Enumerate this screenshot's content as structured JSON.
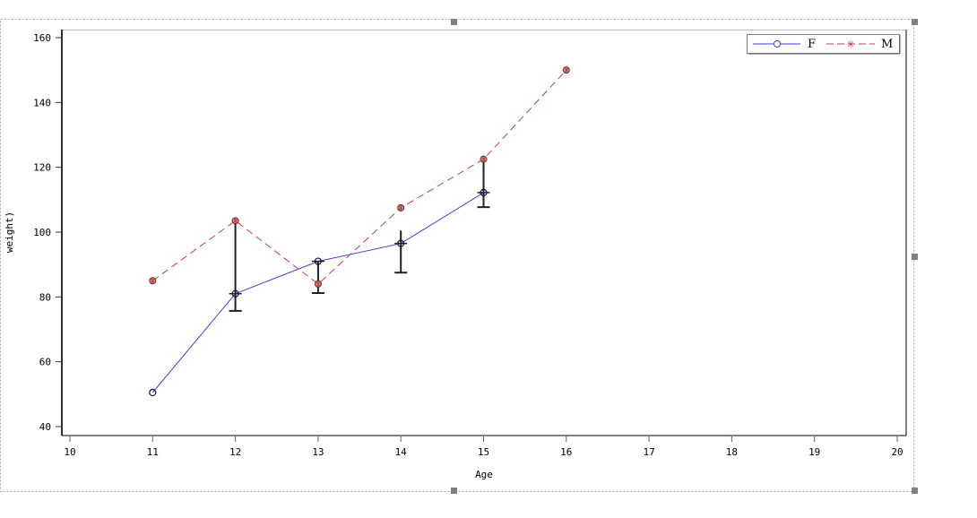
{
  "chart_data": {
    "type": "line",
    "title": "",
    "xlabel": "Age",
    "ylabel": "weight)",
    "xlim": [
      10,
      20
    ],
    "ylim": [
      40,
      160
    ],
    "x_ticks": [
      10,
      11,
      12,
      13,
      14,
      15,
      16,
      17,
      18,
      19,
      20
    ],
    "y_ticks": [
      40,
      60,
      80,
      100,
      120,
      140,
      160
    ],
    "grid": false,
    "legend_position": "top-right",
    "series": [
      {
        "name": "F",
        "color": "#4040d0",
        "line_style": "solid",
        "marker": "circle",
        "x": [
          11,
          12,
          13,
          14,
          15
        ],
        "values": [
          50.5,
          81,
          91,
          96.5,
          112.2
        ]
      },
      {
        "name": "M",
        "color": "#c0404a",
        "line_style": "dashed",
        "marker": "star",
        "x": [
          11,
          12,
          13,
          14,
          15,
          16
        ],
        "values": [
          85,
          103.5,
          84,
          107.5,
          122.5,
          150
        ]
      }
    ],
    "error_bars": [
      {
        "x": 12,
        "low": 75.7,
        "high": 103.5
      },
      {
        "x": 13,
        "low": 81.2,
        "high": 91
      },
      {
        "x": 14,
        "low": 87.5,
        "high": 100.5
      },
      {
        "x": 15,
        "low": 107.7,
        "high": 122.5
      }
    ]
  },
  "legend": {
    "items": [
      {
        "label": "F"
      },
      {
        "label": "M"
      }
    ]
  },
  "axes": {
    "x_title": "Age",
    "y_title": "weight)"
  }
}
